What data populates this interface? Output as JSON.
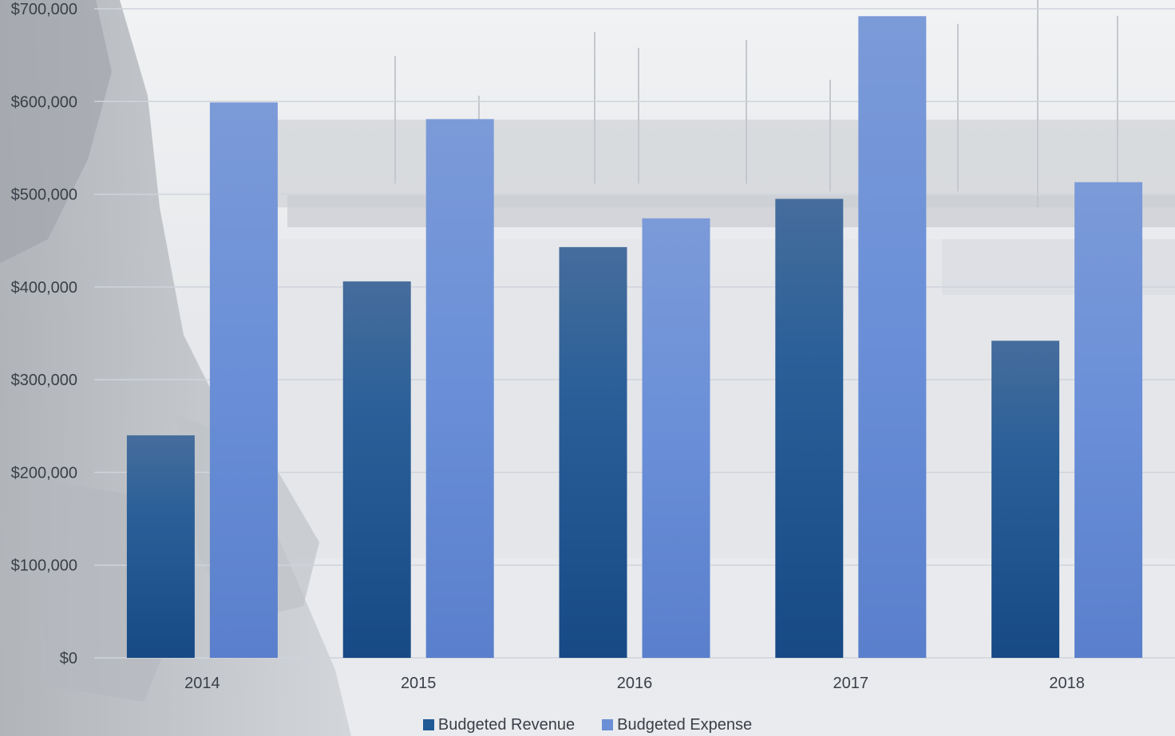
{
  "chart_data": {
    "type": "bar",
    "categories": [
      "2014",
      "2015",
      "2016",
      "2017",
      "2018"
    ],
    "series": [
      {
        "name": "Budgeted Revenue",
        "color": "#1f5a96",
        "values": [
          240000,
          406000,
          443000,
          495000,
          342000
        ]
      },
      {
        "name": "Budgeted Expense",
        "color": "#6a8fd6",
        "values": [
          599000,
          581000,
          474000,
          692000,
          513000
        ]
      }
    ],
    "ylim": [
      0,
      700000
    ],
    "yticks": [
      0,
      100000,
      200000,
      300000,
      400000,
      500000,
      600000,
      700000
    ],
    "ytick_labels": [
      "$0",
      "$100,000",
      "$200,000",
      "$300,000",
      "$400,000",
      "$500,000",
      "$600,000",
      "$700,000"
    ],
    "grid": true,
    "legend_position": "bottom-center",
    "title": "",
    "xlabel": "",
    "ylabel": ""
  }
}
